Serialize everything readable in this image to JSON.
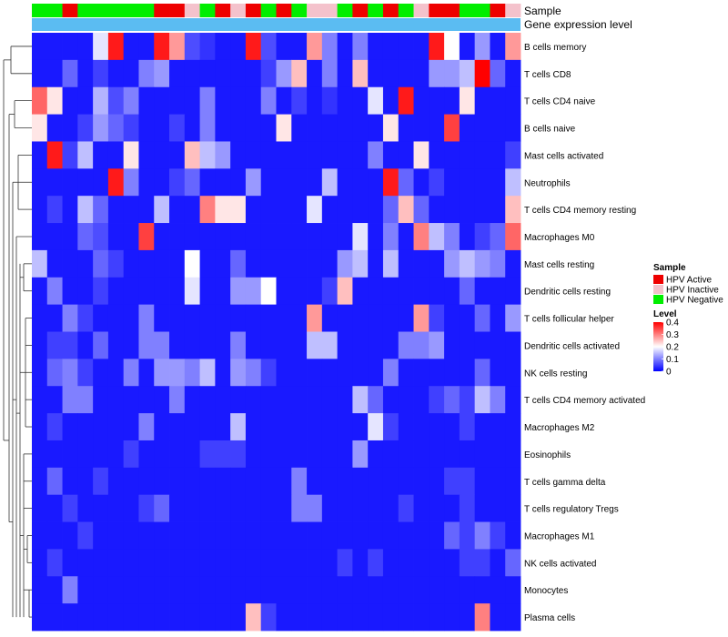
{
  "chart_data": {
    "type": "heatmap",
    "annotation_labels": {
      "sample": "Sample",
      "gene_expression": "Gene expression level"
    },
    "row_labels": [
      "B cells memory",
      "T cells CD8",
      "T cells CD4 naive",
      "B cells naive",
      "Mast cells activated",
      "Neutrophils",
      "T cells CD4 memory resting",
      "Macrophages M0",
      "Mast cells resting",
      "Dendritic cells resting",
      "T cells follicular helper",
      "Dendritic cells activated",
      "NK cells resting",
      "T cells CD4 memory activated",
      "Macrophages M2",
      "Eosinophils",
      "T cells gamma delta",
      "T cells regulatory  Tregs",
      "Macrophages M1",
      "NK cells activated",
      "Monocytes",
      "Plasma cells"
    ],
    "sample_groups": [
      "N",
      "N",
      "A",
      "N",
      "N",
      "N",
      "N",
      "N",
      "A",
      "A",
      "I",
      "N",
      "A",
      "I",
      "A",
      "N",
      "A",
      "N",
      "I",
      "I",
      "N",
      "A",
      "N",
      "A",
      "N",
      "I",
      "A",
      "A",
      "N",
      "N",
      "A",
      "I"
    ],
    "values": [
      [
        0.02,
        0.02,
        0.02,
        0.02,
        0.18,
        0.38,
        0.02,
        0.02,
        0.38,
        0.28,
        0.06,
        0.04,
        0.02,
        0.02,
        0.38,
        0.06,
        0.02,
        0.02,
        0.28,
        0.1,
        0.02,
        0.1,
        0.02,
        0.02,
        0.02,
        0.02,
        0.38,
        0.2,
        0.02,
        0.12,
        0.02,
        0.28
      ],
      [
        0.02,
        0.02,
        0.08,
        0.02,
        0.05,
        0.02,
        0.02,
        0.1,
        0.12,
        0.02,
        0.02,
        0.02,
        0.02,
        0.02,
        0.02,
        0.05,
        0.12,
        0.25,
        0.02,
        0.1,
        0.02,
        0.25,
        0.02,
        0.02,
        0.02,
        0.02,
        0.12,
        0.12,
        0.15,
        0.4,
        0.08,
        0.02
      ],
      [
        0.32,
        0.22,
        0.02,
        0.02,
        0.14,
        0.06,
        0.1,
        0.02,
        0.02,
        0.02,
        0.02,
        0.1,
        0.02,
        0.02,
        0.02,
        0.1,
        0.02,
        0.05,
        0.02,
        0.04,
        0.02,
        0.02,
        0.18,
        0.02,
        0.38,
        0.02,
        0.02,
        0.02,
        0.22,
        0.02,
        0.02,
        0.02
      ],
      [
        0.22,
        0.02,
        0.02,
        0.05,
        0.12,
        0.08,
        0.05,
        0.02,
        0.02,
        0.05,
        0.02,
        0.1,
        0.02,
        0.02,
        0.02,
        0.02,
        0.22,
        0.02,
        0.02,
        0.02,
        0.02,
        0.02,
        0.02,
        0.22,
        0.02,
        0.02,
        0.02,
        0.35,
        0.02,
        0.02,
        0.02,
        0.02
      ],
      [
        0.02,
        0.38,
        0.05,
        0.15,
        0.02,
        0.02,
        0.22,
        0.02,
        0.02,
        0.02,
        0.25,
        0.15,
        0.12,
        0.02,
        0.02,
        0.02,
        0.02,
        0.02,
        0.02,
        0.02,
        0.02,
        0.02,
        0.1,
        0.02,
        0.02,
        0.22,
        0.02,
        0.02,
        0.02,
        0.02,
        0.02,
        0.05
      ],
      [
        0.02,
        0.02,
        0.02,
        0.02,
        0.02,
        0.38,
        0.1,
        0.02,
        0.02,
        0.05,
        0.08,
        0.02,
        0.02,
        0.02,
        0.12,
        0.02,
        0.02,
        0.02,
        0.02,
        0.15,
        0.02,
        0.02,
        0.02,
        0.38,
        0.08,
        0.02,
        0.05,
        0.02,
        0.02,
        0.02,
        0.02,
        0.15
      ],
      [
        0.02,
        0.05,
        0.02,
        0.15,
        0.08,
        0.02,
        0.02,
        0.02,
        0.15,
        0.02,
        0.02,
        0.3,
        0.22,
        0.22,
        0.02,
        0.02,
        0.02,
        0.02,
        0.18,
        0.02,
        0.02,
        0.02,
        0.02,
        0.08,
        0.25,
        0.08,
        0.02,
        0.02,
        0.02,
        0.02,
        0.02,
        0.25
      ],
      [
        0.02,
        0.02,
        0.02,
        0.08,
        0.06,
        0.02,
        0.02,
        0.35,
        0.02,
        0.02,
        0.02,
        0.02,
        0.02,
        0.02,
        0.02,
        0.02,
        0.02,
        0.02,
        0.02,
        0.02,
        0.02,
        0.18,
        0.02,
        0.1,
        0.02,
        0.3,
        0.15,
        0.1,
        0.02,
        0.05,
        0.08,
        0.32
      ],
      [
        0.15,
        0.02,
        0.02,
        0.02,
        0.08,
        0.05,
        0.02,
        0.02,
        0.02,
        0.02,
        0.2,
        0.02,
        0.02,
        0.08,
        0.02,
        0.02,
        0.02,
        0.02,
        0.02,
        0.02,
        0.12,
        0.15,
        0.02,
        0.15,
        0.02,
        0.02,
        0.02,
        0.12,
        0.15,
        0.12,
        0.1,
        0.02
      ],
      [
        0.02,
        0.1,
        0.02,
        0.02,
        0.05,
        0.02,
        0.02,
        0.02,
        0.02,
        0.02,
        0.18,
        0.02,
        0.02,
        0.12,
        0.12,
        0.2,
        0.02,
        0.02,
        0.02,
        0.05,
        0.25,
        0.02,
        0.02,
        0.02,
        0.02,
        0.02,
        0.02,
        0.02,
        0.08,
        0.02,
        0.02,
        0.02
      ],
      [
        0.02,
        0.02,
        0.1,
        0.05,
        0.02,
        0.02,
        0.02,
        0.1,
        0.02,
        0.02,
        0.02,
        0.02,
        0.02,
        0.02,
        0.02,
        0.02,
        0.02,
        0.02,
        0.28,
        0.02,
        0.02,
        0.02,
        0.02,
        0.02,
        0.02,
        0.28,
        0.05,
        0.02,
        0.02,
        0.08,
        0.02,
        0.12
      ],
      [
        0.02,
        0.05,
        0.05,
        0.02,
        0.08,
        0.02,
        0.02,
        0.1,
        0.1,
        0.02,
        0.02,
        0.02,
        0.02,
        0.1,
        0.02,
        0.02,
        0.02,
        0.02,
        0.15,
        0.15,
        0.02,
        0.02,
        0.02,
        0.02,
        0.1,
        0.1,
        0.12,
        0.02,
        0.02,
        0.02,
        0.02,
        0.02
      ],
      [
        0.02,
        0.08,
        0.1,
        0.05,
        0.02,
        0.02,
        0.1,
        0.02,
        0.12,
        0.12,
        0.1,
        0.15,
        0.02,
        0.12,
        0.1,
        0.05,
        0.02,
        0.02,
        0.02,
        0.02,
        0.02,
        0.02,
        0.02,
        0.1,
        0.02,
        0.02,
        0.02,
        0.02,
        0.02,
        0.08,
        0.02,
        0.02
      ],
      [
        0.02,
        0.02,
        0.1,
        0.1,
        0.02,
        0.02,
        0.02,
        0.02,
        0.02,
        0.1,
        0.02,
        0.02,
        0.02,
        0.02,
        0.02,
        0.02,
        0.02,
        0.02,
        0.02,
        0.02,
        0.02,
        0.15,
        0.08,
        0.02,
        0.02,
        0.02,
        0.05,
        0.08,
        0.05,
        0.15,
        0.1,
        0.02
      ],
      [
        0.02,
        0.05,
        0.02,
        0.02,
        0.02,
        0.02,
        0.02,
        0.1,
        0.02,
        0.02,
        0.02,
        0.02,
        0.02,
        0.15,
        0.02,
        0.02,
        0.02,
        0.02,
        0.02,
        0.02,
        0.02,
        0.02,
        0.18,
        0.05,
        0.02,
        0.02,
        0.02,
        0.02,
        0.05,
        0.02,
        0.02,
        0.02
      ],
      [
        0.02,
        0.02,
        0.02,
        0.02,
        0.02,
        0.02,
        0.05,
        0.02,
        0.02,
        0.02,
        0.02,
        0.05,
        0.05,
        0.05,
        0.02,
        0.02,
        0.02,
        0.02,
        0.02,
        0.02,
        0.02,
        0.12,
        0.02,
        0.02,
        0.02,
        0.02,
        0.02,
        0.02,
        0.02,
        0.02,
        0.02,
        0.02
      ],
      [
        0.02,
        0.08,
        0.02,
        0.02,
        0.05,
        0.02,
        0.02,
        0.02,
        0.02,
        0.02,
        0.02,
        0.02,
        0.02,
        0.02,
        0.02,
        0.02,
        0.02,
        0.1,
        0.02,
        0.02,
        0.02,
        0.02,
        0.02,
        0.02,
        0.02,
        0.02,
        0.02,
        0.05,
        0.05,
        0.02,
        0.02,
        0.02
      ],
      [
        0.02,
        0.02,
        0.05,
        0.02,
        0.02,
        0.02,
        0.02,
        0.05,
        0.08,
        0.02,
        0.02,
        0.02,
        0.02,
        0.02,
        0.02,
        0.02,
        0.02,
        0.1,
        0.1,
        0.02,
        0.02,
        0.02,
        0.02,
        0.02,
        0.05,
        0.02,
        0.02,
        0.02,
        0.05,
        0.02,
        0.02,
        0.02
      ],
      [
        0.02,
        0.02,
        0.02,
        0.05,
        0.02,
        0.02,
        0.02,
        0.02,
        0.02,
        0.02,
        0.02,
        0.02,
        0.02,
        0.02,
        0.02,
        0.02,
        0.02,
        0.02,
        0.02,
        0.02,
        0.02,
        0.02,
        0.02,
        0.02,
        0.02,
        0.02,
        0.02,
        0.08,
        0.05,
        0.1,
        0.05,
        0.02
      ],
      [
        0.02,
        0.05,
        0.02,
        0.02,
        0.02,
        0.02,
        0.02,
        0.02,
        0.02,
        0.02,
        0.02,
        0.02,
        0.02,
        0.02,
        0.02,
        0.02,
        0.02,
        0.02,
        0.02,
        0.02,
        0.05,
        0.02,
        0.05,
        0.02,
        0.02,
        0.02,
        0.02,
        0.02,
        0.05,
        0.05,
        0.02,
        0.08
      ],
      [
        0.02,
        0.02,
        0.1,
        0.02,
        0.02,
        0.02,
        0.02,
        0.02,
        0.02,
        0.02,
        0.02,
        0.02,
        0.02,
        0.02,
        0.02,
        0.02,
        0.02,
        0.02,
        0.02,
        0.02,
        0.02,
        0.02,
        0.02,
        0.02,
        0.02,
        0.02,
        0.02,
        0.02,
        0.02,
        0.02,
        0.02,
        0.02
      ],
      [
        0.02,
        0.02,
        0.02,
        0.02,
        0.02,
        0.02,
        0.02,
        0.02,
        0.02,
        0.02,
        0.02,
        0.02,
        0.02,
        0.02,
        0.25,
        0.05,
        0.02,
        0.02,
        0.02,
        0.02,
        0.02,
        0.02,
        0.02,
        0.02,
        0.02,
        0.02,
        0.02,
        0.02,
        0.02,
        0.3,
        0.02,
        0.02
      ]
    ],
    "legend": {
      "sample_title": "Sample",
      "sample_entries": [
        {
          "key": "A",
          "label": "HPV Active",
          "color": "#ee0000"
        },
        {
          "key": "I",
          "label": "HPV Inactive",
          "color": "#f4c2cc"
        },
        {
          "key": "N",
          "label": "HPV Negative",
          "color": "#00ee00"
        }
      ],
      "level_title": "Level",
      "level_ticks": [
        0.4,
        0.3,
        0.2,
        0.1,
        0
      ],
      "level_range": [
        0,
        0.4
      ]
    },
    "colors": {
      "low": "#0000ff",
      "mid": "#ffffff",
      "high": "#ff0000",
      "expression_bar": "#5bbcf2"
    }
  }
}
